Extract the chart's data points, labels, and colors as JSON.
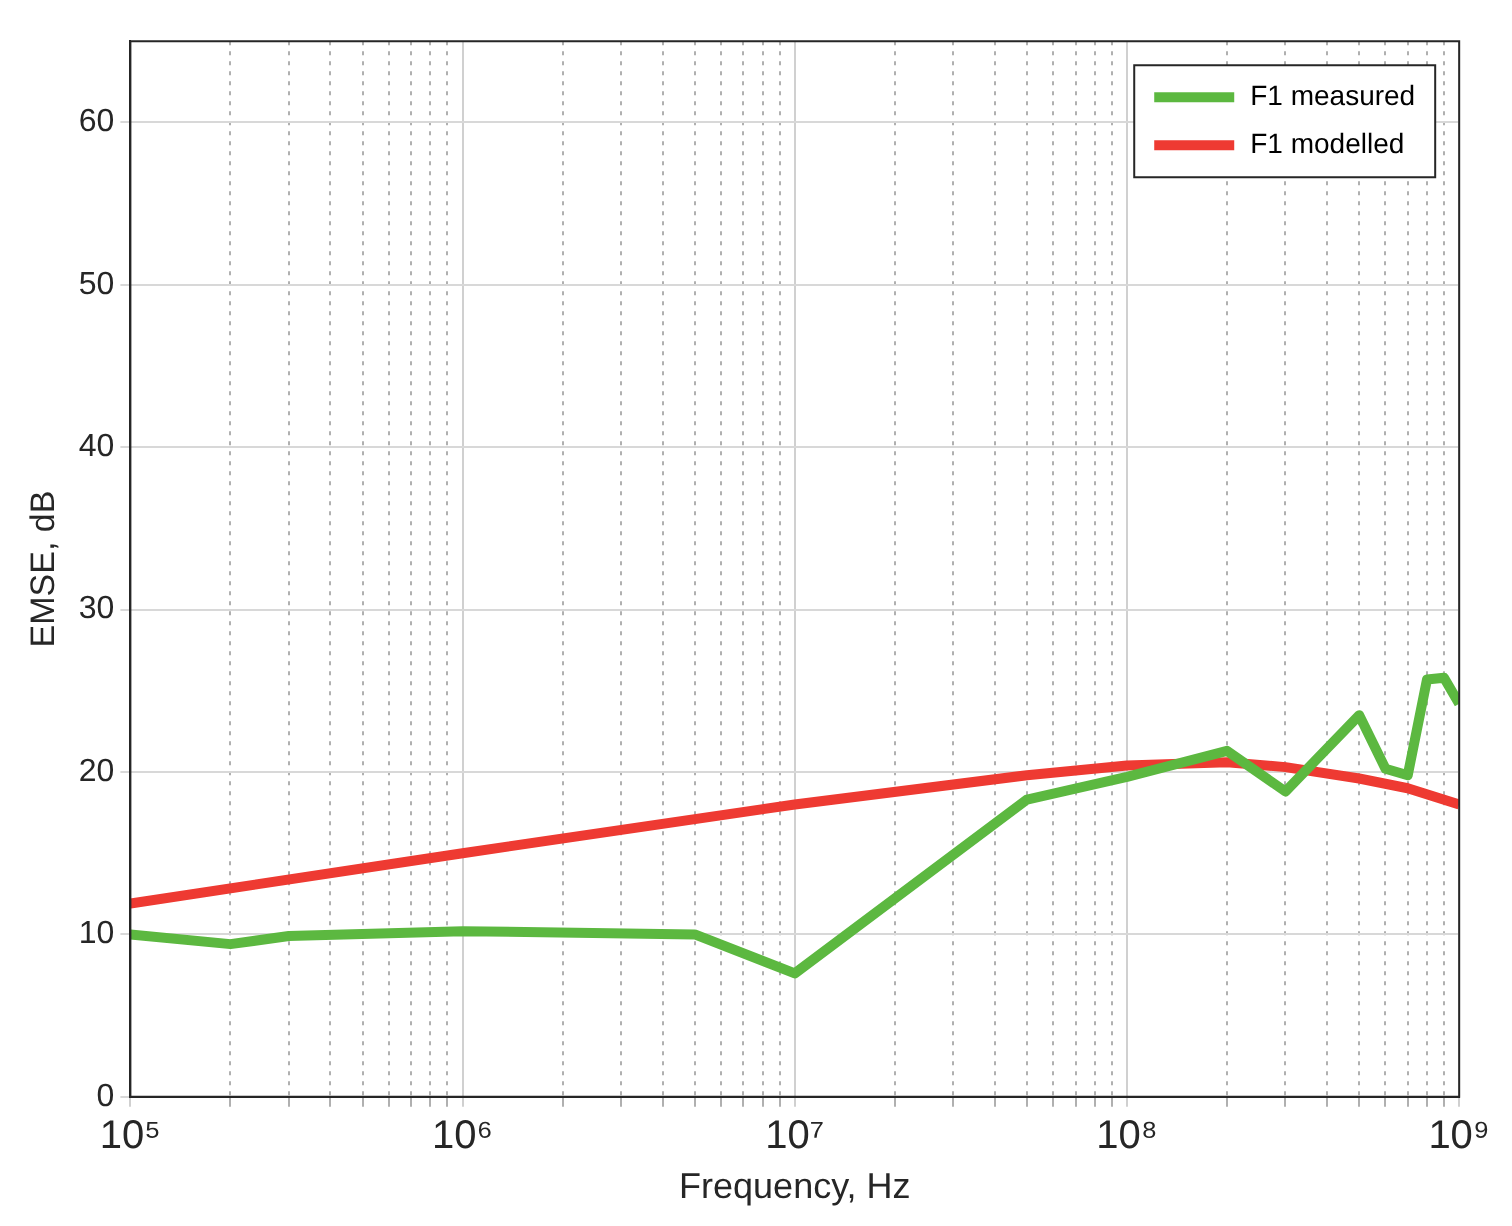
{
  "chart_data": {
    "type": "line",
    "xlabel": "Frequency, Hz",
    "ylabel": "EMSE, dB",
    "log": "x",
    "grid": true,
    "legend": "top right",
    "marker": "none",
    "xlim": [
      100000,
      1000000000
    ],
    "ylim": [
      0,
      65
    ],
    "xticks": [
      {
        "value": 100000,
        "label": "10⁵"
      },
      {
        "value": 200000,
        "label": null
      },
      {
        "value": 300000,
        "label": null
      },
      {
        "value": 400000,
        "label": null
      },
      {
        "value": 500000,
        "label": null
      },
      {
        "value": 600000,
        "label": null
      },
      {
        "value": 700000,
        "label": null
      },
      {
        "value": 800000,
        "label": null
      },
      {
        "value": 900000,
        "label": null
      },
      {
        "value": 1000000,
        "label": "10⁶"
      },
      {
        "value": 2000000,
        "label": null
      },
      {
        "value": 3000000,
        "label": null
      },
      {
        "value": 4000000,
        "label": null
      },
      {
        "value": 5000000,
        "label": null
      },
      {
        "value": 6000000,
        "label": null
      },
      {
        "value": 7000000,
        "label": null
      },
      {
        "value": 8000000,
        "label": null
      },
      {
        "value": 9000000,
        "label": null
      },
      {
        "value": 10000000,
        "label": "10⁷"
      },
      {
        "value": 20000000,
        "label": null
      },
      {
        "value": 30000000,
        "label": null
      },
      {
        "value": 40000000,
        "label": null
      },
      {
        "value": 50000000,
        "label": null
      },
      {
        "value": 60000000,
        "label": null
      },
      {
        "value": 70000000,
        "label": null
      },
      {
        "value": 80000000,
        "label": null
      },
      {
        "value": 90000000,
        "label": null
      },
      {
        "value": 100000000,
        "label": "10⁸"
      },
      {
        "value": 200000000,
        "label": null
      },
      {
        "value": 300000000,
        "label": null
      },
      {
        "value": 400000000,
        "label": null
      },
      {
        "value": 500000000,
        "label": null
      },
      {
        "value": 600000000,
        "label": null
      },
      {
        "value": 700000000,
        "label": null
      },
      {
        "value": 800000000,
        "label": null
      },
      {
        "value": 900000000,
        "label": null
      },
      {
        "value": 1000000000,
        "label": "10⁹"
      }
    ],
    "yticks": [
      0,
      10,
      20,
      30,
      40,
      50,
      60
    ],
    "series": [
      {
        "name": "F1 measured",
        "color": "#5cb840",
        "x": [
          100000,
          200000,
          300000,
          1000000,
          5000000,
          10000000,
          50000000,
          100000000,
          200000000,
          300000000,
          500000000,
          600000000,
          700000000,
          800000000,
          900000000,
          1000000000
        ],
        "values": [
          10,
          9.4,
          9.9,
          10.2,
          10,
          7.6,
          18.3,
          19.7,
          21.3,
          18.8,
          23.5,
          20.2,
          19.8,
          25.7,
          25.8,
          24.2
        ]
      },
      {
        "name": "F1 modelled",
        "color": "#ee3a32",
        "x": [
          100000,
          1000000,
          10000000,
          50000000,
          100000000,
          200000000,
          300000000,
          500000000,
          700000000,
          1000000000
        ],
        "values": [
          11.9,
          15,
          18,
          19.8,
          20.4,
          20.6,
          20.3,
          19.6,
          19,
          18
        ]
      }
    ]
  }
}
